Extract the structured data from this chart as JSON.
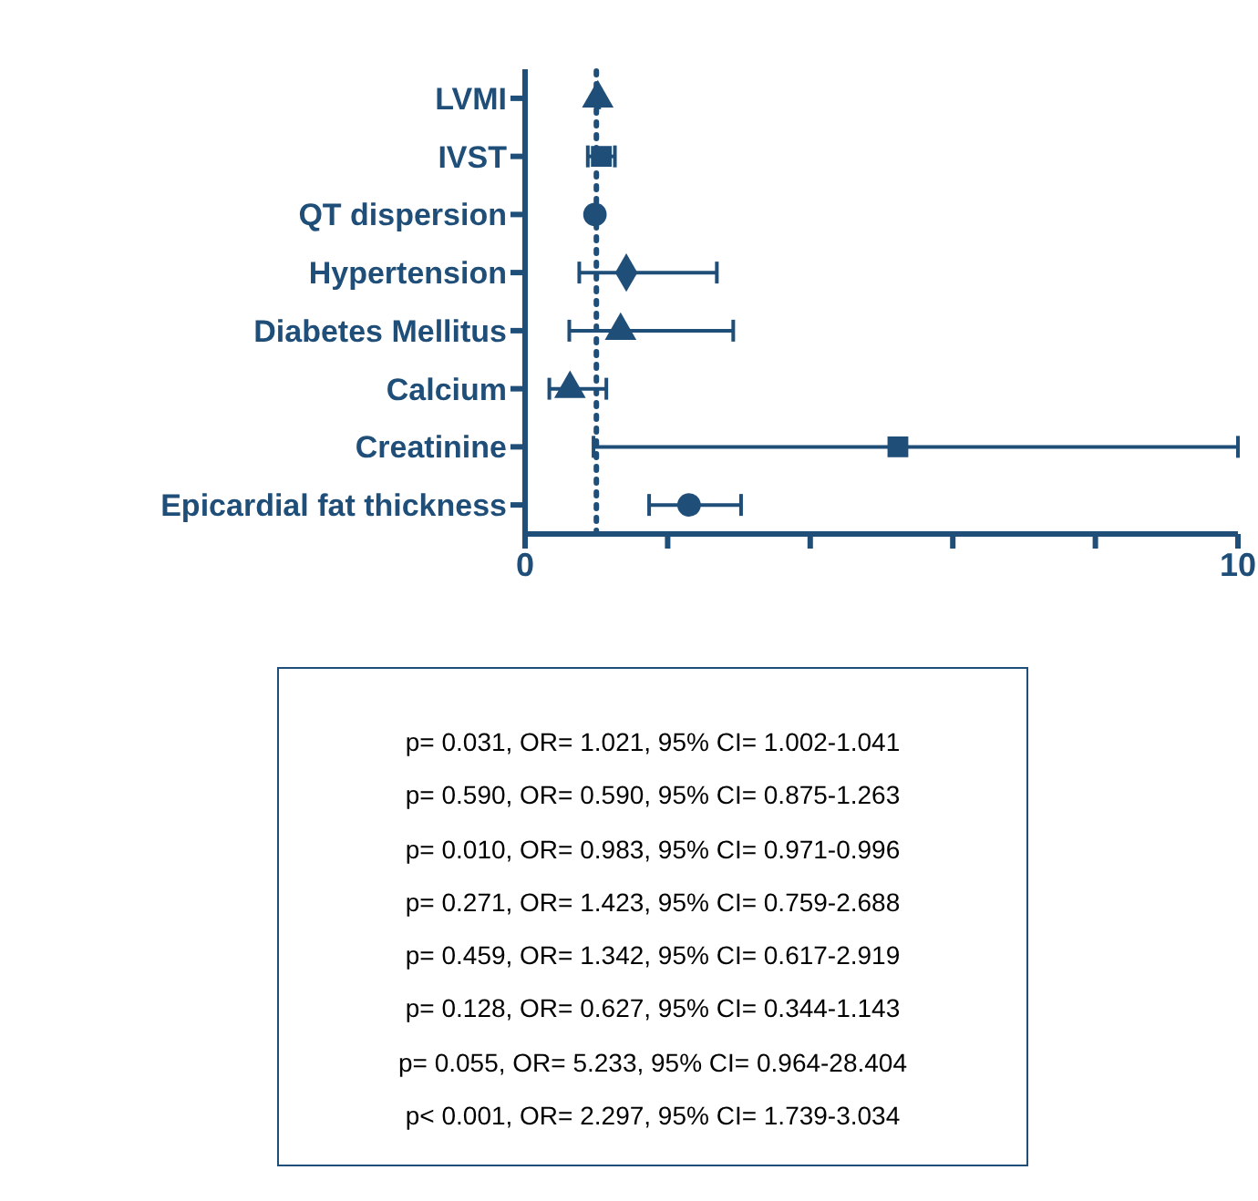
{
  "chart_data": {
    "type": "scatter",
    "categories": [
      "LVMI",
      "IVST",
      "QT dispersion",
      "Hypertension",
      "Diabetes Mellitus",
      "Calcium",
      "Creatinine",
      "Epicardial fat thickness"
    ],
    "series": [
      {
        "color": "#1f4e79",
        "marker": "triangle",
        "values": [
          1.02,
          null,
          null,
          null,
          null,
          null,
          null,
          null
        ],
        "errors": [
          [
            1.0,
            1.04
          ],
          null,
          null,
          null,
          null,
          null,
          null,
          null
        ]
      },
      {
        "color": "#1f4e79",
        "marker": "square",
        "values": [
          null,
          1.07,
          null,
          null,
          null,
          null,
          null,
          null
        ],
        "errors": [
          null,
          [
            0.88,
            1.26
          ],
          null,
          null,
          null,
          null,
          null,
          null
        ]
      },
      {
        "color": "#1f4e79",
        "marker": "circle",
        "values": [
          null,
          null,
          0.98,
          null,
          null,
          null,
          null,
          null
        ],
        "errors": [
          null,
          null,
          [
            0.97,
            1.0
          ],
          null,
          null,
          null,
          null,
          null
        ]
      },
      {
        "color": "#1f4e79",
        "marker": "diamond",
        "values": [
          null,
          null,
          null,
          1.42,
          null,
          null,
          null,
          null
        ],
        "errors": [
          null,
          null,
          null,
          [
            0.76,
            2.69
          ],
          null,
          null,
          null,
          null
        ]
      },
      {
        "color": "#1f4e79",
        "marker": "triangle",
        "values": [
          null,
          null,
          null,
          null,
          1.34,
          null,
          null,
          null
        ],
        "errors": [
          null,
          null,
          null,
          null,
          [
            0.62,
            2.92
          ],
          null,
          null,
          null
        ]
      },
      {
        "color": "#1f4e79",
        "marker": "triangle",
        "values": [
          null,
          null,
          null,
          null,
          null,
          0.63,
          null,
          null
        ],
        "errors": [
          null,
          null,
          null,
          null,
          null,
          [
            0.34,
            1.14
          ],
          null,
          null
        ]
      },
      {
        "color": "#1f4e79",
        "marker": "square",
        "values": [
          null,
          null,
          null,
          null,
          null,
          null,
          5.23,
          null
        ],
        "errors": [
          null,
          null,
          null,
          null,
          null,
          null,
          [
            0.96,
            10
          ],
          null
        ]
      },
      {
        "color": "#1f4e79",
        "marker": "circle",
        "values": [
          null,
          null,
          null,
          null,
          null,
          null,
          null,
          2.3
        ],
        "errors": [
          null,
          null,
          null,
          null,
          null,
          null,
          null,
          [
            1.74,
            3.03
          ]
        ]
      }
    ],
    "orientation": "horizontal",
    "xlim": [
      0,
      10
    ],
    "xticks": [
      0,
      {
        "value": 2,
        "label": null
      },
      {
        "value": 4,
        "label": null
      },
      {
        "value": 6,
        "label": null
      },
      {
        "value": 8,
        "label": null
      },
      10
    ],
    "ref_lines": [
      {
        "axis": "x",
        "value": 1,
        "line_style": "dotted",
        "color": "#1f4e79"
      }
    ],
    "grid": false,
    "legend": false,
    "annotations": [
      "p= 0.031, OR= 1.021, 95% CI= 1.002-1.041",
      "p= 0.590, OR= 0.590, 95% CI= 0.875-1.263",
      "p= 0.010, OR= 0.983, 95% CI= 0.971-0.996",
      "p= 0.271, OR= 1.423, 95% CI= 0.759-2.688",
      "p= 0.459, OR= 1.342, 95% CI= 0.617-2.919",
      "p= 0.128, OR= 0.627, 95% CI= 0.344-1.143",
      "p= 0.055, OR= 5.233, 95% CI= 0.964-28.404",
      "p< 0.001, OR= 2.297, 95% CI= 1.739-3.034"
    ]
  }
}
